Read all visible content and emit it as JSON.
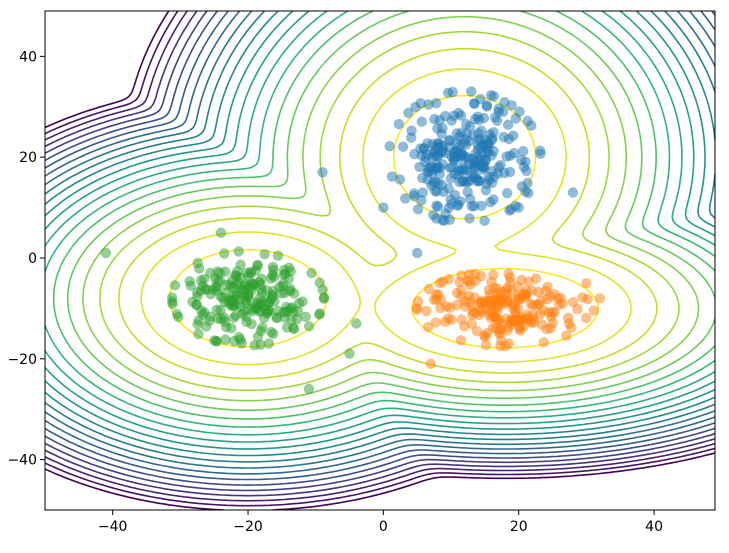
{
  "chart_data": {
    "type": "scatter",
    "title": "",
    "xlabel": "",
    "ylabel": "",
    "xlim": [
      -50,
      49
    ],
    "ylim": [
      -50,
      49
    ],
    "x_ticks": [
      -40,
      -20,
      0,
      20,
      40
    ],
    "y_ticks": [
      40,
      20,
      0,
      -20,
      -40
    ],
    "x_tick_labels": [
      "−40",
      "−20",
      "0",
      "20",
      "40"
    ],
    "y_tick_labels": [
      "40",
      "20",
      "0",
      "−20",
      "−40"
    ],
    "grid": false,
    "legend": "none",
    "overlay": "density contour lines (viridis colormap)",
    "series": [
      {
        "color": "#1f77b4",
        "center": [
          12,
          20
        ],
        "spread": [
          6,
          7
        ],
        "count": 260,
        "extra_points": [
          [
            -9,
            17
          ],
          [
            28,
            13
          ],
          [
            5,
            1
          ],
          [
            20,
            10
          ],
          [
            0,
            10
          ]
        ]
      },
      {
        "color": "#ff7f0e",
        "center": [
          18,
          -10
        ],
        "spread": [
          7,
          4
        ],
        "count": 200,
        "extra_points": [
          [
            32,
            -8
          ],
          [
            7,
            -21
          ],
          [
            30,
            -5
          ]
        ]
      },
      {
        "color": "#2ca02c",
        "center": [
          -20,
          -8
        ],
        "spread": [
          6,
          5
        ],
        "count": 210,
        "extra_points": [
          [
            -41,
            1
          ],
          [
            -24,
            5
          ],
          [
            -11,
            -26
          ],
          [
            -5,
            -19
          ],
          [
            -4,
            -13
          ]
        ]
      }
    ]
  }
}
